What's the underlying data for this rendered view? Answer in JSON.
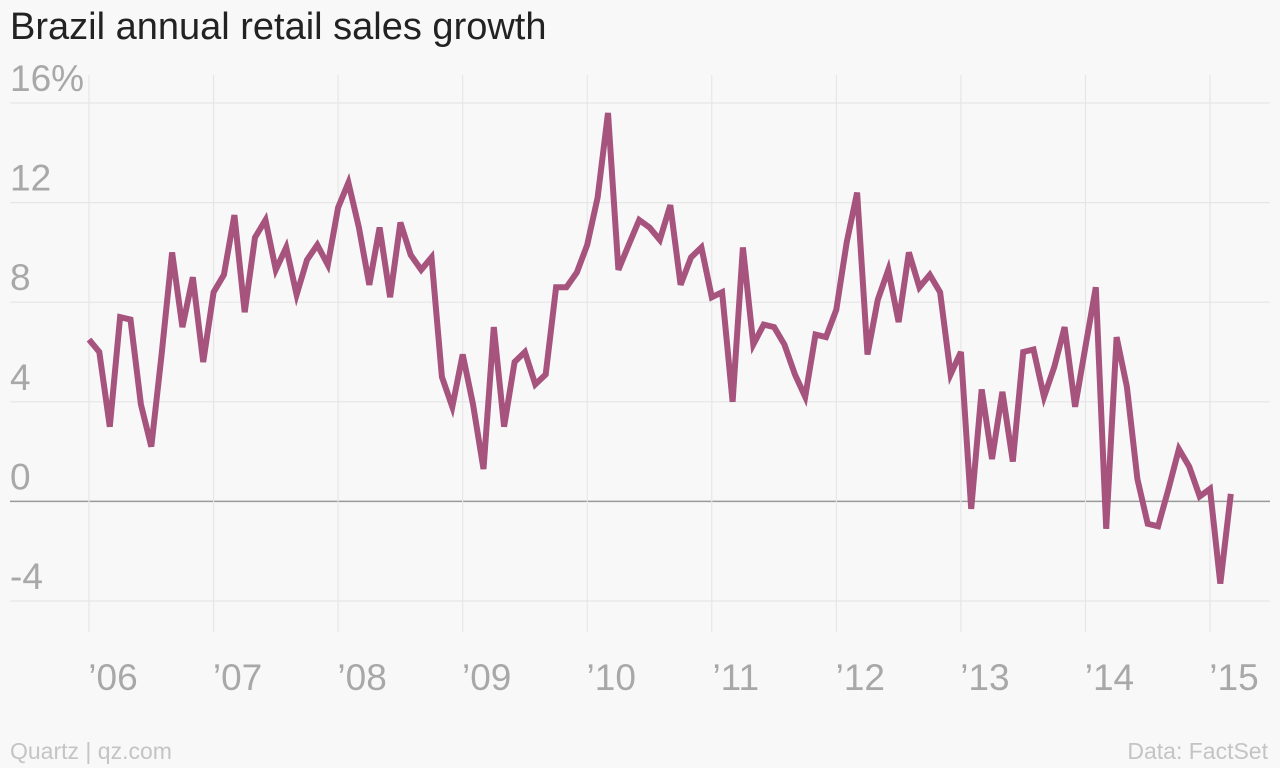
{
  "chart_data": {
    "type": "line",
    "title": "Brazil annual retail sales growth",
    "ylim": [
      -4,
      16
    ],
    "xlim": [
      2006.0,
      2015.0
    ],
    "y_ticks": [
      16,
      12,
      8,
      4,
      0,
      -4
    ],
    "y_tick_labels": [
      "16%",
      "12",
      "8",
      "4",
      "0",
      "-4"
    ],
    "x_ticks": [
      2006,
      2007,
      2008,
      2009,
      2010,
      2011,
      2012,
      2013,
      2014,
      2015
    ],
    "x_tick_labels": [
      "’06",
      "’07",
      "’08",
      "’09",
      "’10",
      "’11",
      "’12",
      "’13",
      "’14",
      "’15"
    ],
    "grid": true,
    "line_color": "#a6537e",
    "series": [
      {
        "name": "",
        "points": [
          [
            2006.0,
            6.5
          ],
          [
            2006.083,
            6.0
          ],
          [
            2006.167,
            3.0
          ],
          [
            2006.25,
            7.4
          ],
          [
            2006.333,
            7.3
          ],
          [
            2006.417,
            3.9
          ],
          [
            2006.5,
            2.2
          ],
          [
            2006.583,
            5.9
          ],
          [
            2006.667,
            10.0
          ],
          [
            2006.75,
            7.0
          ],
          [
            2006.833,
            9.0
          ],
          [
            2006.917,
            5.6
          ],
          [
            2007.0,
            8.4
          ],
          [
            2007.083,
            9.1
          ],
          [
            2007.167,
            11.5
          ],
          [
            2007.25,
            7.6
          ],
          [
            2007.333,
            10.6
          ],
          [
            2007.417,
            11.3
          ],
          [
            2007.5,
            9.3
          ],
          [
            2007.583,
            10.2
          ],
          [
            2007.667,
            8.3
          ],
          [
            2007.75,
            9.7
          ],
          [
            2007.833,
            10.3
          ],
          [
            2007.917,
            9.5
          ],
          [
            2008.0,
            11.8
          ],
          [
            2008.083,
            12.8
          ],
          [
            2008.167,
            11.0
          ],
          [
            2008.25,
            8.7
          ],
          [
            2008.333,
            11.0
          ],
          [
            2008.417,
            8.2
          ],
          [
            2008.5,
            11.2
          ],
          [
            2008.583,
            9.9
          ],
          [
            2008.667,
            9.3
          ],
          [
            2008.75,
            9.8
          ],
          [
            2008.833,
            5.0
          ],
          [
            2008.917,
            3.8
          ],
          [
            2009.0,
            5.9
          ],
          [
            2009.083,
            3.9
          ],
          [
            2009.167,
            1.3
          ],
          [
            2009.25,
            7.0
          ],
          [
            2009.333,
            3.0
          ],
          [
            2009.417,
            5.6
          ],
          [
            2009.5,
            6.0
          ],
          [
            2009.583,
            4.7
          ],
          [
            2009.667,
            5.1
          ],
          [
            2009.75,
            8.6
          ],
          [
            2009.833,
            8.6
          ],
          [
            2009.917,
            9.2
          ],
          [
            2010.0,
            10.3
          ],
          [
            2010.083,
            12.2
          ],
          [
            2010.167,
            15.6
          ],
          [
            2010.25,
            9.3
          ],
          [
            2010.333,
            10.3
          ],
          [
            2010.417,
            11.3
          ],
          [
            2010.5,
            11.0
          ],
          [
            2010.583,
            10.5
          ],
          [
            2010.667,
            11.9
          ],
          [
            2010.75,
            8.7
          ],
          [
            2010.833,
            9.8
          ],
          [
            2010.917,
            10.2
          ],
          [
            2011.0,
            8.2
          ],
          [
            2011.083,
            8.4
          ],
          [
            2011.167,
            4.0
          ],
          [
            2011.25,
            10.2
          ],
          [
            2011.333,
            6.3
          ],
          [
            2011.417,
            7.1
          ],
          [
            2011.5,
            7.0
          ],
          [
            2011.583,
            6.3
          ],
          [
            2011.667,
            5.1
          ],
          [
            2011.75,
            4.2
          ],
          [
            2011.833,
            6.7
          ],
          [
            2011.917,
            6.6
          ],
          [
            2012.0,
            7.7
          ],
          [
            2012.083,
            10.4
          ],
          [
            2012.167,
            12.4
          ],
          [
            2012.25,
            5.9
          ],
          [
            2012.333,
            8.1
          ],
          [
            2012.417,
            9.3
          ],
          [
            2012.5,
            7.2
          ],
          [
            2012.583,
            10.0
          ],
          [
            2012.667,
            8.6
          ],
          [
            2012.75,
            9.1
          ],
          [
            2012.833,
            8.4
          ],
          [
            2012.917,
            5.1
          ],
          [
            2013.0,
            6.0
          ],
          [
            2013.083,
            -0.3
          ],
          [
            2013.167,
            4.5
          ],
          [
            2013.25,
            1.7
          ],
          [
            2013.333,
            4.4
          ],
          [
            2013.417,
            1.6
          ],
          [
            2013.5,
            6.0
          ],
          [
            2013.583,
            6.1
          ],
          [
            2013.667,
            4.2
          ],
          [
            2013.75,
            5.4
          ],
          [
            2013.833,
            7.0
          ],
          [
            2013.917,
            3.8
          ],
          [
            2014.0,
            6.2
          ],
          [
            2014.083,
            8.6
          ],
          [
            2014.167,
            -1.1
          ],
          [
            2014.25,
            6.6
          ],
          [
            2014.333,
            4.6
          ],
          [
            2014.417,
            0.9
          ],
          [
            2014.5,
            -0.9
          ],
          [
            2014.583,
            -1.0
          ],
          [
            2014.667,
            0.5
          ],
          [
            2014.75,
            2.1
          ],
          [
            2014.833,
            1.4
          ],
          [
            2014.917,
            0.2
          ],
          [
            2015.0,
            0.5
          ],
          [
            2015.083,
            -3.3
          ],
          [
            2015.167,
            0.3
          ]
        ]
      }
    ]
  },
  "footer": {
    "source_left": "Quartz | qz.com",
    "source_right": "Data: FactSet"
  }
}
